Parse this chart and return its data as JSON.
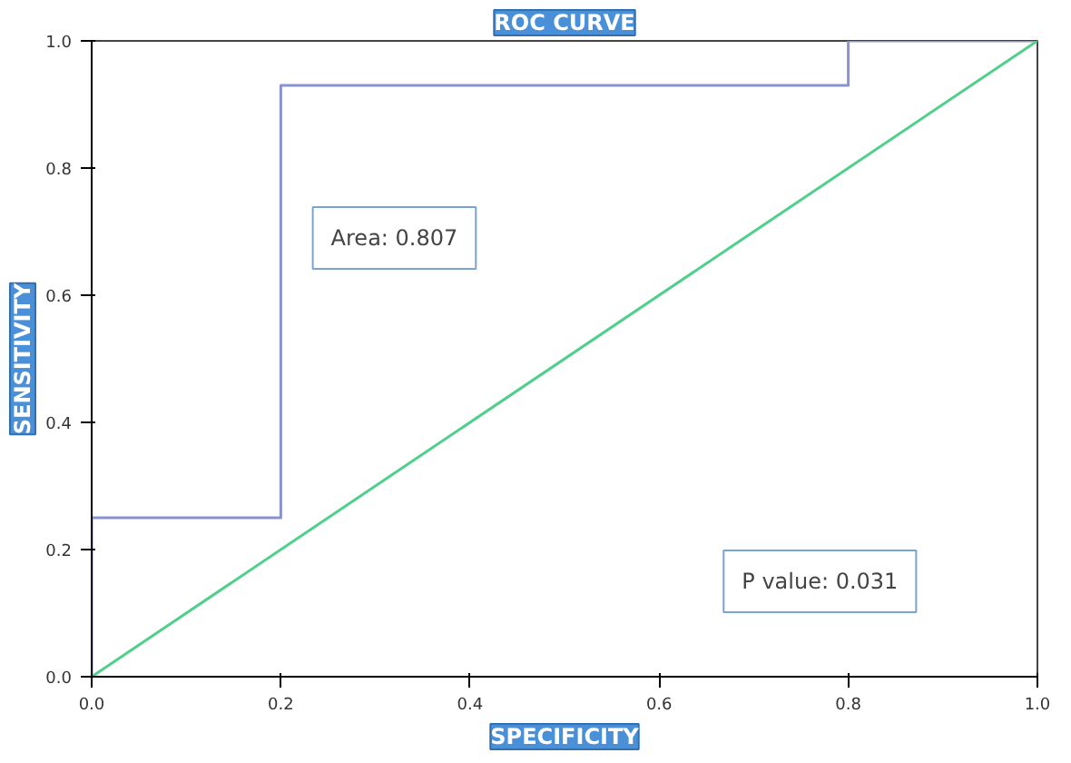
{
  "chart_data": {
    "type": "line",
    "title": "ROC CURVE",
    "xlabel": "SPECIFICITY",
    "ylabel": "SENSITIVITY",
    "series": [
      {
        "color": "#8a93d0",
        "x": [
          0,
          0,
          0.2,
          0.2,
          0.8,
          0.8,
          1.0
        ],
        "values": [
          0,
          0.25,
          0.25,
          0.93,
          0.93,
          1.0,
          1.0
        ]
      },
      {
        "color": "#4fd08a",
        "x": [
          0,
          1.0
        ],
        "values": [
          0,
          1.0
        ]
      }
    ],
    "xlim": [
      0,
      1
    ],
    "ylim": [
      0,
      1
    ],
    "xticks": [
      {
        "value": 0,
        "label": "0.0"
      },
      0.2,
      0.4,
      0.6,
      0.8,
      {
        "value": 1,
        "label": "1.0"
      }
    ],
    "yticks": [
      {
        "value": 0,
        "label": "0.0"
      },
      0.2,
      0.4,
      0.6,
      0.8,
      {
        "value": 1,
        "label": "1.0"
      }
    ],
    "grid": false,
    "line_style": "solid",
    "annotations": [
      "Area: 0.807",
      "P value: 0.031"
    ]
  }
}
